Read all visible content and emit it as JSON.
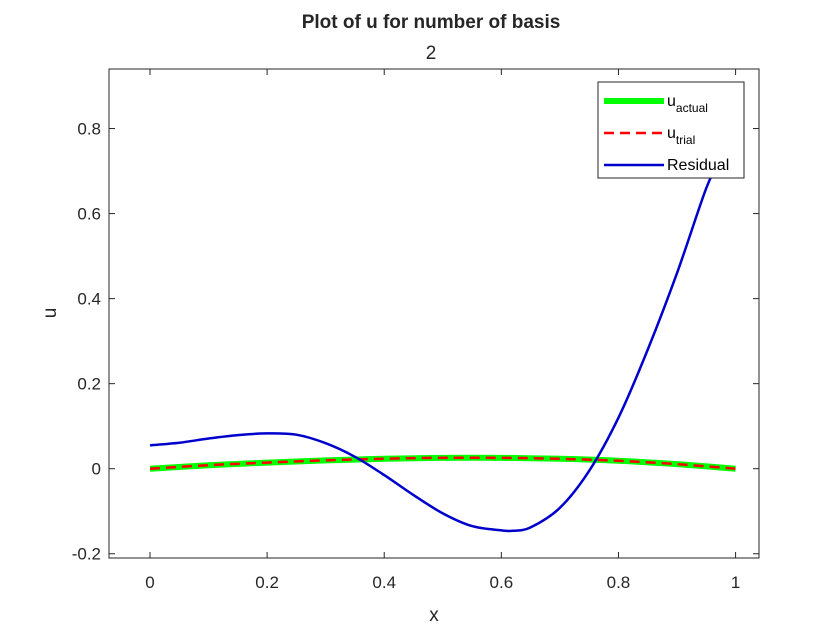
{
  "chart_data": {
    "type": "line",
    "title": "Plot of u for number of basis",
    "subtitle": "2",
    "xlabel": "x",
    "ylabel": "u",
    "xlim": [
      -0.07,
      1.04
    ],
    "ylim": [
      -0.21,
      0.94
    ],
    "xticks": [
      0,
      0.2,
      0.4,
      0.6,
      0.8,
      1
    ],
    "xtick_labels": [
      "0",
      "0.2",
      "0.4",
      "0.6",
      "0.8",
      "1"
    ],
    "yticks": [
      -0.2,
      0,
      0.2,
      0.4,
      0.6,
      0.8
    ],
    "ytick_labels": [
      "-0.2",
      "0",
      "0.2",
      "0.4",
      "0.6",
      "0.8"
    ],
    "grid": false,
    "legend_position": "top-right",
    "series": [
      {
        "name": "u_actual",
        "legend_main": "u",
        "legend_sub": "actual",
        "color": "#00ff00",
        "style": "solid-thick",
        "x": [
          0,
          0.1,
          0.2,
          0.3,
          0.4,
          0.5,
          0.6,
          0.7,
          0.8,
          0.9,
          1
        ],
        "y": [
          0,
          0.0082,
          0.0143,
          0.0196,
          0.0234,
          0.0256,
          0.0256,
          0.0234,
          0.0187,
          0.0108,
          0
        ]
      },
      {
        "name": "u_trial",
        "legend_main": "u",
        "legend_sub": "trial",
        "color": "#ff0000",
        "style": "dashed",
        "x": [
          0,
          0.1,
          0.2,
          0.3,
          0.4,
          0.5,
          0.6,
          0.7,
          0.8,
          0.9,
          1
        ],
        "y": [
          0,
          0.0083,
          0.0144,
          0.0197,
          0.0235,
          0.0256,
          0.0255,
          0.0233,
          0.0186,
          0.0107,
          0
        ]
      },
      {
        "name": "Residual",
        "legend_main": "Residual",
        "legend_sub": "",
        "color": "#0000cc",
        "style": "solid",
        "x": [
          0,
          0.05,
          0.1,
          0.15,
          0.2,
          0.25,
          0.3,
          0.35,
          0.4,
          0.45,
          0.5,
          0.55,
          0.6,
          0.62,
          0.65,
          0.7,
          0.75,
          0.8,
          0.85,
          0.9,
          0.95,
          0.975
        ],
        "y": [
          0.055,
          0.061,
          0.071,
          0.079,
          0.083,
          0.08,
          0.06,
          0.028,
          -0.015,
          -0.062,
          -0.105,
          -0.135,
          -0.145,
          -0.146,
          -0.138,
          -0.092,
          -0.005,
          0.12,
          0.28,
          0.46,
          0.66,
          0.73
        ]
      }
    ]
  }
}
